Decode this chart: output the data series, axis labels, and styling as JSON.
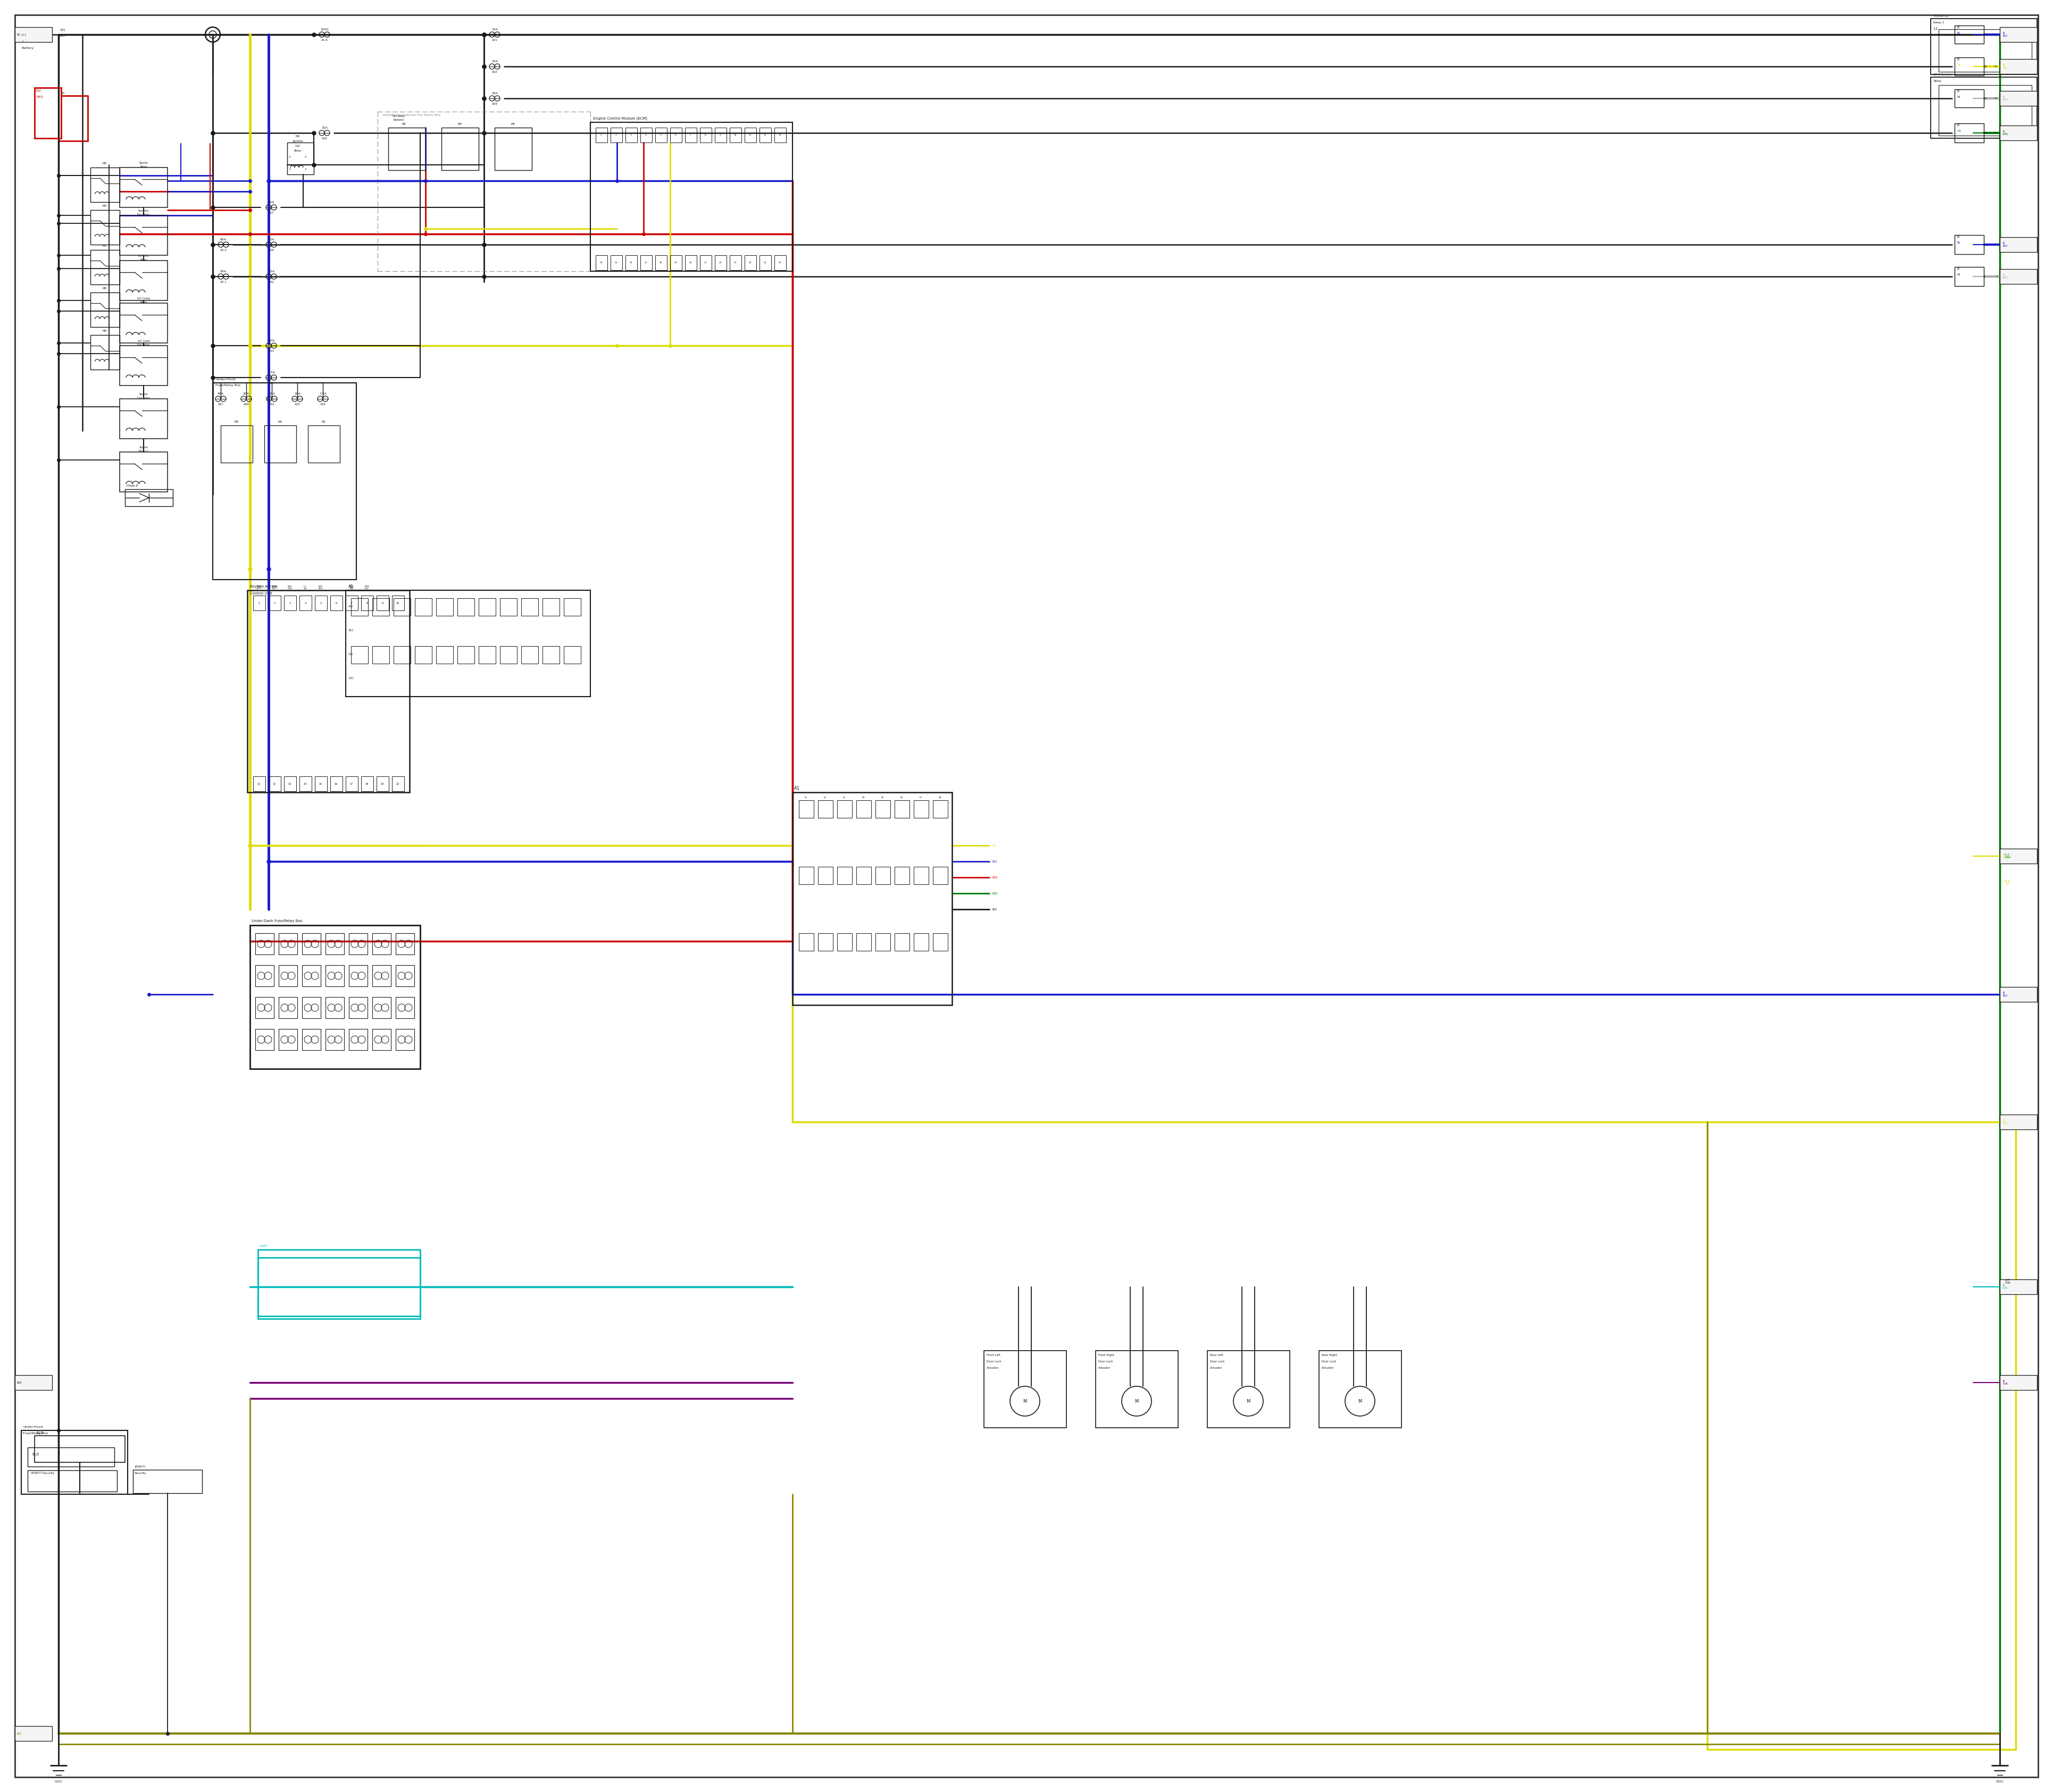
{
  "bg_color": "#ffffff",
  "fig_width": 38.4,
  "fig_height": 33.5,
  "colors": {
    "black": "#1a1a1a",
    "red": "#cc0000",
    "blue": "#1a1acc",
    "yellow": "#dddd00",
    "green": "#007700",
    "cyan": "#00bbbb",
    "purple": "#770077",
    "dark_yellow": "#888800",
    "gray": "#888888",
    "light_gray": "#cccccc",
    "white_wire": "#aaaaaa"
  }
}
